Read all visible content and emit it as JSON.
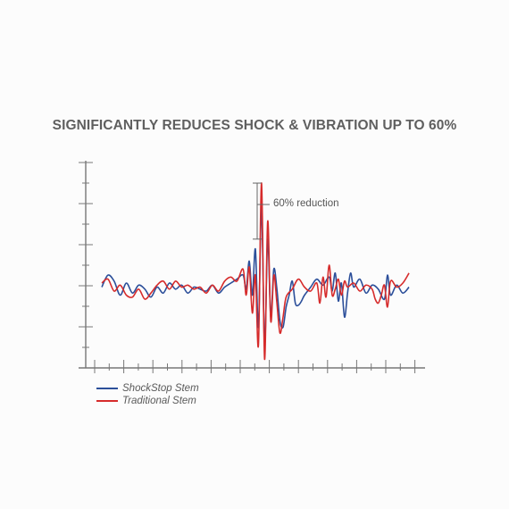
{
  "title": "SIGNIFICANTLY REDUCES SHOCK & VIBRATION UP TO 60%",
  "chart_data": {
    "type": "line",
    "title": "SIGNIFICANTLY REDUCES SHOCK & VIBRATION UP TO 60%",
    "xlabel": "",
    "ylabel": "",
    "xlim": [
      0,
      100
    ],
    "ylim": [
      -10,
      10
    ],
    "annotation": "60% reduction",
    "grid": false,
    "legend_position": "bottom-left",
    "series": [
      {
        "name": "ShockStop Stem",
        "color": "#2c4f9a",
        "points": [
          [
            0,
            0.4
          ],
          [
            2,
            1.6
          ],
          [
            4,
            1.0
          ],
          [
            6,
            -0.4
          ],
          [
            8,
            0.8
          ],
          [
            10,
            -0.2
          ],
          [
            12,
            0.6
          ],
          [
            14,
            0.2
          ],
          [
            16,
            -0.6
          ],
          [
            18,
            0.4
          ],
          [
            20,
            -0.2
          ],
          [
            22,
            0.8
          ],
          [
            24,
            0.2
          ],
          [
            26,
            0.6
          ],
          [
            28,
            -0.2
          ],
          [
            30,
            0.4
          ],
          [
            32,
            0.2
          ],
          [
            34,
            0.0
          ],
          [
            36,
            0.6
          ],
          [
            38,
            -0.2
          ],
          [
            40,
            0.4
          ],
          [
            42,
            0.8
          ],
          [
            44,
            1.2
          ],
          [
            46,
            1.6
          ],
          [
            47,
            0.2
          ],
          [
            48,
            3.0
          ],
          [
            49,
            -0.4
          ],
          [
            50,
            4.2
          ],
          [
            51,
            -3.6
          ],
          [
            52,
            8.4
          ],
          [
            53,
            -5.4
          ],
          [
            54,
            5.2
          ],
          [
            55,
            -2.6
          ],
          [
            56,
            2.2
          ],
          [
            57,
            0.2
          ],
          [
            58,
            -3.0
          ],
          [
            59,
            -3.6
          ],
          [
            60,
            -1.6
          ],
          [
            61,
            -0.4
          ],
          [
            62,
            1.0
          ],
          [
            63,
            -1.2
          ],
          [
            64,
            -1.4
          ],
          [
            65,
            -1.0
          ],
          [
            66,
            -0.4
          ],
          [
            68,
            0.4
          ],
          [
            70,
            1.2
          ],
          [
            72,
            0.6
          ],
          [
            74,
            1.4
          ],
          [
            75,
            0.0
          ],
          [
            76,
            1.8
          ],
          [
            77,
            -1.0
          ],
          [
            78,
            0.8
          ],
          [
            79,
            -2.6
          ],
          [
            80,
            -0.2
          ],
          [
            81,
            1.8
          ],
          [
            82,
            0.4
          ],
          [
            84,
            1.2
          ],
          [
            86,
            -0.2
          ],
          [
            88,
            0.6
          ],
          [
            90,
            0.2
          ],
          [
            92,
            -0.8
          ],
          [
            93,
            1.6
          ],
          [
            94,
            -0.4
          ],
          [
            96,
            0.6
          ],
          [
            98,
            -0.2
          ],
          [
            100,
            0.4
          ]
        ]
      },
      {
        "name": "Traditional Stem",
        "color": "#d62b2b",
        "points": [
          [
            0,
            0.8
          ],
          [
            2,
            1.2
          ],
          [
            4,
            0.0
          ],
          [
            6,
            0.6
          ],
          [
            8,
            -0.4
          ],
          [
            10,
            -0.6
          ],
          [
            12,
            0.2
          ],
          [
            14,
            -0.8
          ],
          [
            16,
            -0.2
          ],
          [
            18,
            0.6
          ],
          [
            20,
            1.0
          ],
          [
            22,
            0.2
          ],
          [
            24,
            1.0
          ],
          [
            26,
            0.4
          ],
          [
            28,
            0.6
          ],
          [
            30,
            0.2
          ],
          [
            32,
            0.4
          ],
          [
            34,
            -0.2
          ],
          [
            36,
            0.6
          ],
          [
            38,
            0.0
          ],
          [
            40,
            1.0
          ],
          [
            42,
            1.4
          ],
          [
            44,
            1.0
          ],
          [
            46,
            2.2
          ],
          [
            47,
            -0.4
          ],
          [
            48,
            2.4
          ],
          [
            49,
            -2.2
          ],
          [
            50,
            1.6
          ],
          [
            51,
            -5.4
          ],
          [
            52,
            10.8
          ],
          [
            53,
            -6.8
          ],
          [
            54,
            7.0
          ],
          [
            55,
            -3.0
          ],
          [
            56,
            1.6
          ],
          [
            57,
            -1.2
          ],
          [
            58,
            -4.2
          ],
          [
            59,
            -2.6
          ],
          [
            60,
            -0.6
          ],
          [
            62,
            0.2
          ],
          [
            64,
            1.2
          ],
          [
            66,
            0.4
          ],
          [
            68,
            0.0
          ],
          [
            70,
            0.8
          ],
          [
            71,
            -1.2
          ],
          [
            72,
            1.4
          ],
          [
            73,
            -0.6
          ],
          [
            74,
            2.6
          ],
          [
            75,
            -0.4
          ],
          [
            76,
            0.2
          ],
          [
            77,
            1.2
          ],
          [
            78,
            -0.4
          ],
          [
            79,
            1.0
          ],
          [
            80,
            0.4
          ],
          [
            82,
            0.8
          ],
          [
            84,
            0.0
          ],
          [
            86,
            0.6
          ],
          [
            88,
            0.2
          ],
          [
            89,
            -0.8
          ],
          [
            90,
            -1.2
          ],
          [
            91,
            -0.4
          ],
          [
            92,
            0.6
          ],
          [
            93,
            -1.6
          ],
          [
            94,
            1.0
          ],
          [
            96,
            0.4
          ],
          [
            98,
            0.8
          ],
          [
            100,
            1.8
          ]
        ]
      }
    ]
  },
  "legend": {
    "items": [
      {
        "label": "ShockStop Stem",
        "color": "#2c4f9a"
      },
      {
        "label": "Traditional Stem",
        "color": "#d62b2b"
      }
    ]
  }
}
